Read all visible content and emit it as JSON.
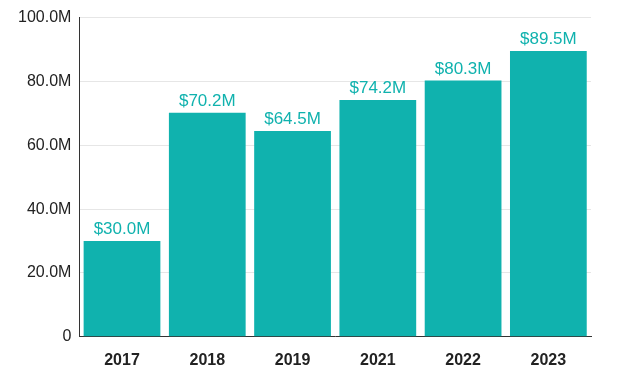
{
  "chart_data": {
    "type": "bar",
    "categories": [
      "2017",
      "2018",
      "2019",
      "2021",
      "2022",
      "2023"
    ],
    "values": [
      30.0,
      70.2,
      64.5,
      74.2,
      80.3,
      89.5
    ],
    "value_labels": [
      "$30.0M",
      "$70.2M",
      "$64.5M",
      "$74.2M",
      "$80.3M",
      "$89.5M"
    ],
    "color": "#10b2ae",
    "ylim": [
      0,
      100
    ],
    "yticks": [
      0,
      {
        "value": 20,
        "label": "20.0M"
      },
      {
        "value": 40,
        "label": "40.0M"
      },
      {
        "value": 60,
        "label": "60.0M"
      },
      {
        "value": 80,
        "label": "80.0M"
      },
      {
        "value": 100,
        "label": "100.0M"
      }
    ],
    "grid": true,
    "data_labels": true
  }
}
